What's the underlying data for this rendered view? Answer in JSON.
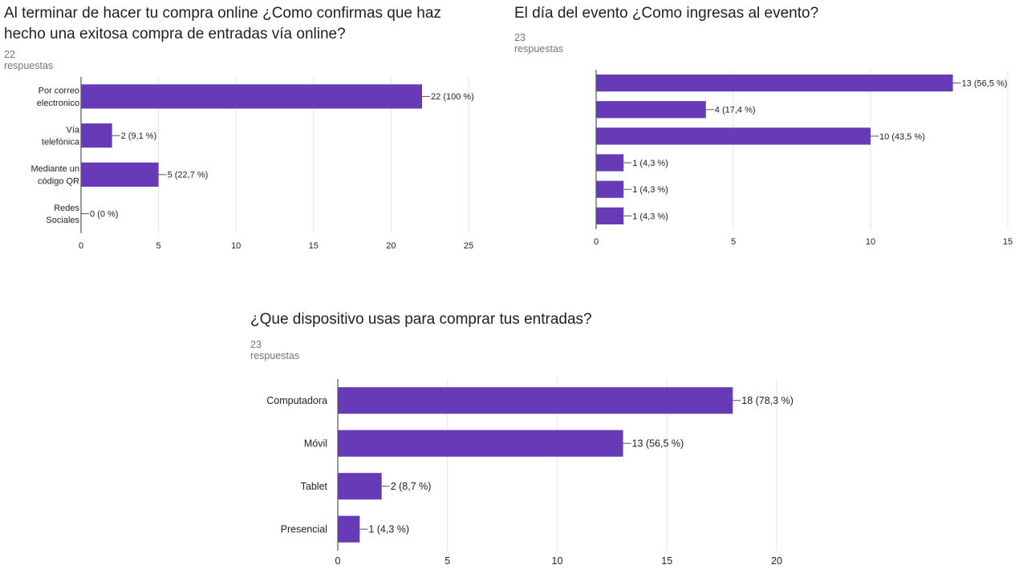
{
  "colors": {
    "bar": "#673ab7",
    "grid": "#e6e6e6",
    "axis": "#333333",
    "text": "#222222",
    "muted": "#757575"
  },
  "chart_data": [
    {
      "type": "bar",
      "orientation": "horizontal",
      "title": "Al terminar de hacer tu compra online ¿Como confirmas que haz hecho una exitosa compra de entradas vía online?",
      "responses": "22 respuestas",
      "categories": [
        "Por correo electronico",
        "Vía telefónica",
        "Mediante un código QR",
        "Redes Sociales"
      ],
      "values": [
        22,
        2,
        5,
        0
      ],
      "value_labels": [
        "22 (100 %)",
        "2 (9,1 %)",
        "5 (22,7 %)",
        "0 (0 %)"
      ],
      "xlim": [
        0,
        25
      ],
      "xticks": [
        0,
        5,
        10,
        15,
        20,
        25
      ],
      "grid": true,
      "legend": "none"
    },
    {
      "type": "bar",
      "orientation": "horizontal",
      "title": "El día del evento ¿Como ingresas al evento?",
      "responses": "23 respuestas",
      "categories": [
        "",
        "",
        "",
        "",
        "",
        ""
      ],
      "values": [
        13,
        4,
        10,
        1,
        1,
        1
      ],
      "value_labels": [
        "13 (56,5 %)",
        "4 (17,4 %)",
        "10 (43,5 %)",
        "1 (4,3 %)",
        "1 (4,3 %)",
        "1 (4,3 %)"
      ],
      "xlim": [
        0,
        15
      ],
      "xticks": [
        0,
        5,
        10,
        15
      ],
      "grid": true,
      "legend": "none"
    },
    {
      "type": "bar",
      "orientation": "horizontal",
      "title": "¿Que dispositivo usas para comprar tus entradas?",
      "responses": "23 respuestas",
      "categories": [
        "Computadora",
        "Móvil",
        "Tablet",
        "Presencial"
      ],
      "values": [
        18,
        13,
        2,
        1
      ],
      "value_labels": [
        "18 (78,3 %)",
        "13 (56,5 %)",
        "2 (8,7 %)",
        "1 (4,3 %)"
      ],
      "xlim": [
        0,
        20
      ],
      "xticks": [
        0,
        5,
        10,
        15,
        20
      ],
      "grid": true,
      "legend": "none"
    }
  ]
}
